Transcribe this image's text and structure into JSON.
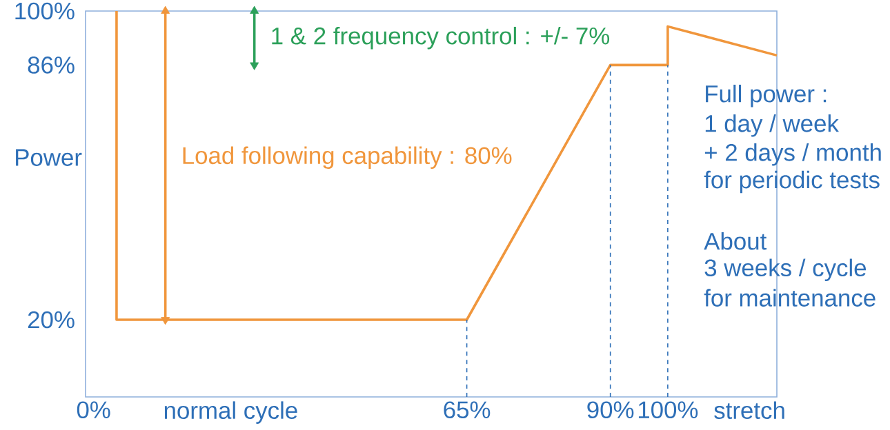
{
  "chart_data": {
    "type": "line",
    "ylabel": "Power",
    "xlabel": "normal cycle",
    "xlim": [
      -1.4,
      119
    ],
    "ylim": [
      0,
      100
    ],
    "xticks": [
      {
        "value": 0,
        "label": "0%"
      },
      {
        "value": 65,
        "label": "65%"
      },
      {
        "value": 90,
        "label": "90%"
      },
      {
        "value": 100,
        "label": "100%"
      }
    ],
    "yticks": [
      {
        "value": 20,
        "label": "20%"
      },
      {
        "value": 86,
        "label": "86%"
      },
      {
        "value": 100,
        "label": "100%"
      }
    ],
    "series": [
      {
        "color": "#f0963c",
        "x": [
          4,
          4,
          65,
          90,
          100,
          100,
          119
        ],
        "values": [
          100,
          20,
          20,
          86,
          86,
          96,
          88.5
        ]
      },
      {
        "color": "#f0963c",
        "x": [
          12.5,
          12.5
        ],
        "values": [
          20,
          100
        ],
        "marker": "triangle"
      },
      {
        "color": "#2ca05a",
        "x": [
          28,
          28
        ],
        "values": [
          86,
          100
        ],
        "marker": "triangle"
      }
    ],
    "ref_lines": [
      {
        "axis": "x",
        "value": 65,
        "color": "#2e6fb7",
        "line_style": "dashed"
      },
      {
        "axis": "x",
        "value": 90,
        "color": "#2e6fb7",
        "line_style": "dashed"
      },
      {
        "axis": "x",
        "value": 100,
        "color": "#2e6fb7",
        "line_style": "dashed"
      }
    ],
    "annotations": [
      {
        "text": "Load following capability : 80%",
        "x": 12.5,
        "y": 62
      },
      {
        "text": "1 & 2 frequency control : +/- 7%",
        "x": 28,
        "y": 93
      },
      "Full power :",
      "1 day / week",
      "+ 2 days / month",
      "for periodic tests",
      "About",
      "3 weeks / cycle",
      "for maintenance",
      "stretch"
    ],
    "grid": false,
    "marker": "none",
    "line_style": "solid"
  }
}
